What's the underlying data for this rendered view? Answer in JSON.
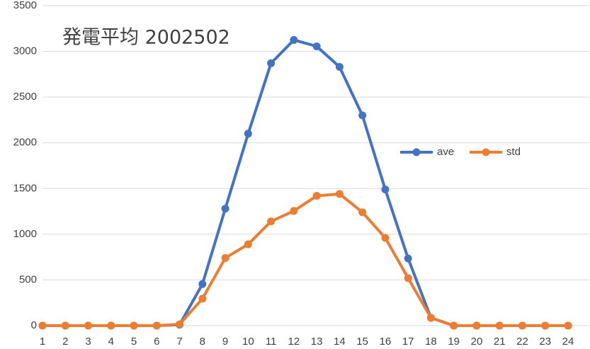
{
  "chart_data": {
    "type": "line",
    "title": "発電平均 2002502",
    "categories": [
      "1",
      "2",
      "3",
      "4",
      "5",
      "6",
      "7",
      "8",
      "9",
      "10",
      "11",
      "12",
      "13",
      "14",
      "15",
      "16",
      "17",
      "18",
      "19",
      "20",
      "21",
      "22",
      "23",
      "24"
    ],
    "series": [
      {
        "name": "ave",
        "color": "#4472c4",
        "values": [
          0,
          0,
          0,
          0,
          0,
          0,
          10,
          455,
          1280,
          2100,
          2870,
          3125,
          3055,
          2830,
          2300,
          1490,
          735,
          85,
          0,
          0,
          0,
          0,
          0,
          0
        ]
      },
      {
        "name": "std",
        "color": "#ed7d31",
        "values": [
          0,
          0,
          0,
          0,
          0,
          0,
          15,
          295,
          740,
          890,
          1140,
          1255,
          1420,
          1440,
          1240,
          960,
          520,
          85,
          0,
          0,
          0,
          0,
          0,
          0
        ]
      }
    ],
    "ylim": [
      0,
      3500
    ],
    "yticks": [
      0,
      500,
      1000,
      1500,
      2000,
      2500,
      3000,
      3500
    ],
    "grid": true,
    "legend": "right"
  }
}
